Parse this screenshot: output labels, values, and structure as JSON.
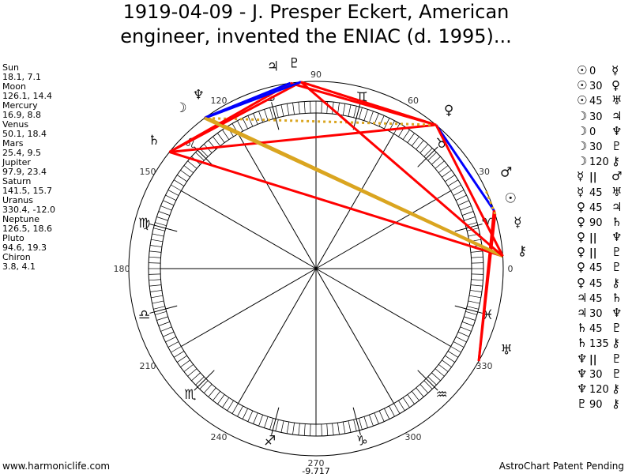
{
  "title_line1": "1919-04-09 - J. Presper Eckert, American",
  "title_line2": "engineer, invented the ENIAC (d. 1995)...",
  "planets": [
    {
      "name": "Sun",
      "glyph": "☉",
      "pos": "18.1, 7.1",
      "lon": 18.1
    },
    {
      "name": "Moon",
      "glyph": "☽",
      "pos": "126.1, 14.4",
      "lon": 126.1
    },
    {
      "name": "Mercury",
      "glyph": "☿",
      "pos": "16.9, 8.8",
      "lon": 16.9
    },
    {
      "name": "Venus",
      "glyph": "♀",
      "pos": "50.1, 18.4",
      "lon": 50.1
    },
    {
      "name": "Mars",
      "glyph": "♂",
      "pos": "25.4, 9.5",
      "lon": 25.4
    },
    {
      "name": "Jupiter",
      "glyph": "♃",
      "pos": "97.9, 23.4",
      "lon": 97.9
    },
    {
      "name": "Saturn",
      "glyph": "♄",
      "pos": "141.5, 15.7",
      "lon": 141.5
    },
    {
      "name": "Uranus",
      "glyph": "♅",
      "pos": "330.4, -12.0",
      "lon": 330.4
    },
    {
      "name": "Neptune",
      "glyph": "♆",
      "pos": "126.5, 18.6",
      "lon": 126.5
    },
    {
      "name": "Pluto",
      "glyph": "♇",
      "pos": "94.6, 19.3",
      "lon": 94.6
    },
    {
      "name": "Chiron",
      "glyph": "⚷",
      "pos": "3.8, 4.1",
      "lon": 3.8
    }
  ],
  "signs": [
    "♈",
    "♉",
    "♊",
    "♋",
    "♌",
    "♍",
    "♎",
    "♏",
    "♐",
    "♑",
    "♒",
    "♓"
  ],
  "degree_labels": [
    "0",
    "30",
    "60",
    "90",
    "120",
    "150",
    "180",
    "210",
    "240",
    "270",
    "300",
    "330"
  ],
  "bottom_value": "-9,717",
  "aspect_colors": {
    "0": "#ff0000",
    "30": "#0000ff",
    "45": "#ff0000",
    "90": "#ff0000",
    "120": "#daa520",
    "135": "#ff0000",
    "||": "#daa520"
  },
  "aspects": [
    {
      "p1": "Sun",
      "asp": "0",
      "p2": "Mercury"
    },
    {
      "p1": "Sun",
      "asp": "30",
      "p2": "Venus"
    },
    {
      "p1": "Sun",
      "asp": "45",
      "p2": "Uranus"
    },
    {
      "p1": "Moon",
      "asp": "30",
      "p2": "Jupiter"
    },
    {
      "p1": "Moon",
      "asp": "0",
      "p2": "Neptune"
    },
    {
      "p1": "Moon",
      "asp": "30",
      "p2": "Pluto"
    },
    {
      "p1": "Moon",
      "asp": "120",
      "p2": "Chiron"
    },
    {
      "p1": "Mercury",
      "asp": "||",
      "p2": "Mars"
    },
    {
      "p1": "Mercury",
      "asp": "45",
      "p2": "Uranus"
    },
    {
      "p1": "Venus",
      "asp": "45",
      "p2": "Jupiter"
    },
    {
      "p1": "Venus",
      "asp": "90",
      "p2": "Saturn"
    },
    {
      "p1": "Venus",
      "asp": "||",
      "p2": "Neptune"
    },
    {
      "p1": "Venus",
      "asp": "||",
      "p2": "Pluto"
    },
    {
      "p1": "Venus",
      "asp": "45",
      "p2": "Pluto"
    },
    {
      "p1": "Venus",
      "asp": "45",
      "p2": "Chiron"
    },
    {
      "p1": "Jupiter",
      "asp": "45",
      "p2": "Saturn"
    },
    {
      "p1": "Jupiter",
      "asp": "30",
      "p2": "Neptune"
    },
    {
      "p1": "Saturn",
      "asp": "45",
      "p2": "Pluto"
    },
    {
      "p1": "Saturn",
      "asp": "135",
      "p2": "Chiron"
    },
    {
      "p1": "Neptune",
      "asp": "||",
      "p2": "Pluto"
    },
    {
      "p1": "Neptune",
      "asp": "30",
      "p2": "Pluto"
    },
    {
      "p1": "Neptune",
      "asp": "120",
      "p2": "Chiron"
    },
    {
      "p1": "Pluto",
      "asp": "90",
      "p2": "Chiron"
    }
  ],
  "footer_left": "www.harmoniclife.com",
  "footer_right": "AstroChart Patent Pending"
}
